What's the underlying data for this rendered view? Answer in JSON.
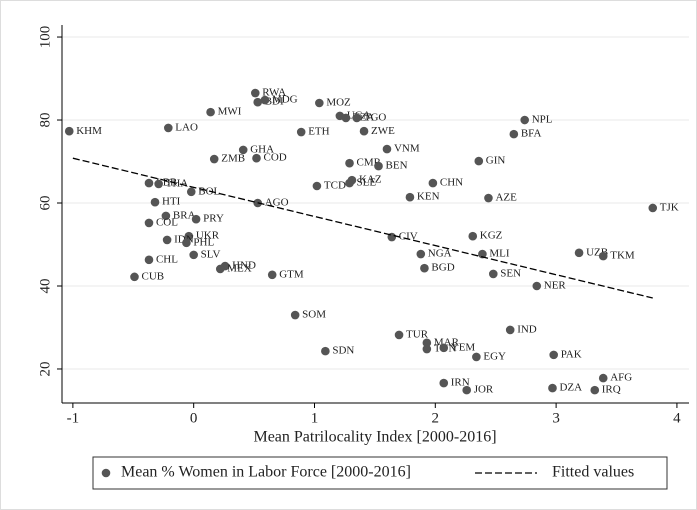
{
  "chart_data": {
    "type": "scatter",
    "x_label": "Mean Patrilocality Index [2000-2016]",
    "xlim": [
      -1.09,
      4.1
    ],
    "ylim": [
      11.8,
      102.9
    ],
    "xticks": [
      -1,
      0,
      1,
      2,
      3,
      4
    ],
    "yticks": [
      20,
      40,
      60,
      80,
      100
    ],
    "grid": true,
    "legend": "bottom",
    "series": [
      {
        "name": "Mean % Women in Labor Force [2000-2016]",
        "type": "scatter",
        "color": "#555555",
        "labels": [
          "KHM",
          "LAO",
          "MWI",
          "RWA",
          "BDI",
          "MDG",
          "MOZ",
          "UGA",
          "TZA",
          "TGO",
          "ETH",
          "ZWE",
          "NPL",
          "BFA",
          "GHA",
          "ZMB",
          "COD",
          "VNM",
          "CMR",
          "BEN",
          "GIN",
          "KAZ",
          "SLE",
          "TCD",
          "CHN",
          "KEN",
          "AZE",
          "TJK",
          "LBR",
          "THA",
          "BOL",
          "AGO",
          "HTI",
          "BRA",
          "PRY",
          "COL",
          "UKR",
          "IDN",
          "PHL",
          "SLV",
          "CHL",
          "CUB",
          "HND",
          "MEX",
          "GTM",
          "CIV",
          "KGZ",
          "NGA",
          "MLI",
          "BGD",
          "SEN",
          "UZB",
          "TKM",
          "NER",
          "SOM",
          "TUR",
          "MAR",
          "TUN",
          "YEM",
          "SDN",
          "EGY",
          "IND",
          "PAK",
          "IRN",
          "JOR",
          "DZA",
          "AFG",
          "IRQ"
        ],
        "x": [
          -1.03,
          -0.21,
          0.14,
          0.51,
          0.53,
          0.59,
          1.04,
          1.21,
          1.26,
          1.35,
          0.89,
          1.41,
          2.74,
          2.65,
          0.41,
          0.17,
          0.52,
          1.6,
          1.29,
          1.53,
          2.36,
          1.31,
          1.29,
          1.02,
          1.98,
          1.79,
          2.44,
          3.8,
          -0.37,
          -0.29,
          -0.02,
          0.53,
          -0.32,
          -0.23,
          0.02,
          -0.37,
          -0.04,
          -0.22,
          -0.06,
          0.0,
          -0.37,
          -0.49,
          0.26,
          0.22,
          0.65,
          1.64,
          2.31,
          1.88,
          2.39,
          1.91,
          2.48,
          3.19,
          3.39,
          2.84,
          0.84,
          1.7,
          1.93,
          1.93,
          2.07,
          1.09,
          2.34,
          2.62,
          2.98,
          2.07,
          2.26,
          2.97,
          3.39,
          3.32
        ],
        "values": [
          77.3,
          78.1,
          81.9,
          86.5,
          84.3,
          84.8,
          84.1,
          81.0,
          80.5,
          80.5,
          77.1,
          77.3,
          80.0,
          76.6,
          72.8,
          70.6,
          70.8,
          73.0,
          69.6,
          68.9,
          70.1,
          65.5,
          64.8,
          64.1,
          64.8,
          61.4,
          61.2,
          58.8,
          64.8,
          64.6,
          62.7,
          60.0,
          60.2,
          56.9,
          56.1,
          55.2,
          52.0,
          51.1,
          50.4,
          47.5,
          46.3,
          42.2,
          44.8,
          44.1,
          42.7,
          51.8,
          52.0,
          47.7,
          47.7,
          44.3,
          42.9,
          48.0,
          47.2,
          40.0,
          33.0,
          28.2,
          26.3,
          24.8,
          25.1,
          24.3,
          22.9,
          29.4,
          23.4,
          16.6,
          14.9,
          15.4,
          17.8,
          14.9
        ]
      },
      {
        "name": "Fitted values",
        "type": "line",
        "color": "#000000",
        "x": [
          -1,
          3.8
        ],
        "values": [
          70.8,
          37.1
        ]
      }
    ]
  }
}
